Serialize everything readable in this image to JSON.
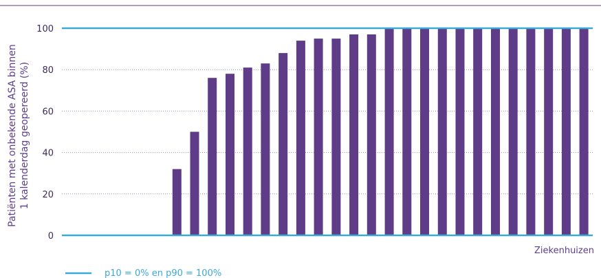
{
  "chart_data": {
    "type": "bar",
    "xlabel": "Ziekenhuizen",
    "ylabel_lines": [
      "Patiënten met onbekende ASA binnen",
      "1 kalenderdag geopereerd (%)"
    ],
    "ylim": [
      0,
      100
    ],
    "yticks": [
      "0",
      "20",
      "40",
      "60",
      "80",
      "100"
    ],
    "grid": "horizontal-dotted",
    "values": [
      0,
      0,
      0,
      0,
      0,
      0,
      32,
      50,
      76,
      78,
      81,
      83,
      88,
      94,
      95,
      95,
      97,
      97,
      100,
      100,
      100,
      100,
      100,
      100,
      100,
      100,
      100,
      100,
      100,
      100
    ],
    "reference_lines": [
      {
        "name": "p10",
        "value": 0
      },
      {
        "name": "p90",
        "value": 100
      }
    ],
    "legend": {
      "label": "p10 = 0% en p90 = 100%",
      "placement": "bottom-left"
    },
    "colors": {
      "bar": "#5e3c87",
      "reference": "#3aa9d8",
      "grid": "#9a8fb0",
      "top_rule": "#5e3c87"
    }
  }
}
